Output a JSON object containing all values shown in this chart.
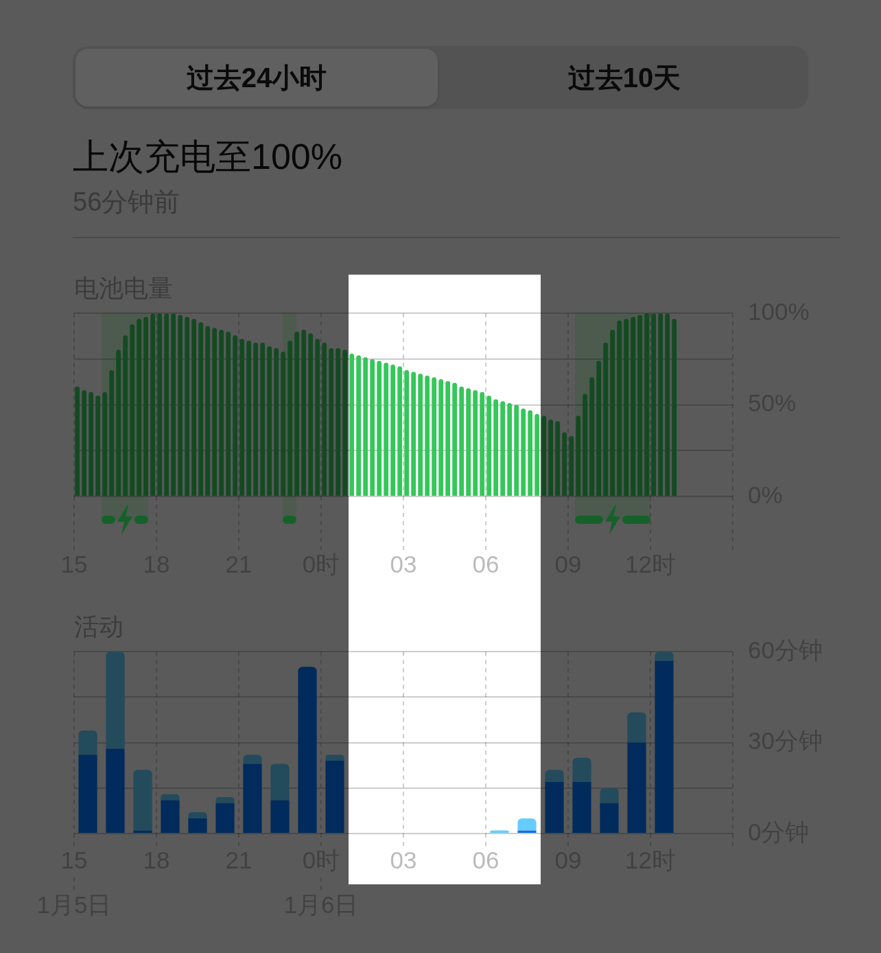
{
  "chart_data": [
    {
      "type": "other",
      "title": "上次充电至100%",
      "subtitle": "56分钟前",
      "annotations": [
        "过去24小时",
        "过去10天"
      ]
    },
    {
      "type": "bar",
      "title": "电池电量",
      "x": [
        "--01-05T15:07",
        "--01-05T15:22",
        "--01-05T15:37",
        "--01-05T15:52",
        "--01-05T16:07",
        "--01-05T16:22",
        "--01-05T16:37",
        "--01-05T16:52",
        "--01-05T17:07",
        "--01-05T17:22",
        "--01-05T17:37",
        "--01-05T17:52",
        "--01-05T18:07",
        "--01-05T18:22",
        "--01-05T18:37",
        "--01-05T18:52",
        "--01-05T19:07",
        "--01-05T19:22",
        "--01-05T19:37",
        "--01-05T19:52",
        "--01-05T20:07",
        "--01-05T20:22",
        "--01-05T20:37",
        "--01-05T20:52",
        "--01-05T21:07",
        "--01-05T21:22",
        "--01-05T21:37",
        "--01-05T21:52",
        "--01-05T22:07",
        "--01-05T22:22",
        "--01-05T22:37",
        "--01-05T22:52",
        "--01-05T23:07",
        "--01-05T23:22",
        "--01-05T23:37",
        "--01-05T23:52",
        "--01-06T00:07",
        "--01-06T00:22",
        "--01-06T00:37",
        "--01-06T00:52",
        "--01-06T01:07",
        "--01-06T01:22",
        "--01-06T01:37",
        "--01-06T01:52",
        "--01-06T02:07",
        "--01-06T02:22",
        "--01-06T02:37",
        "--01-06T02:52",
        "--01-06T03:07",
        "--01-06T03:22",
        "--01-06T03:37",
        "--01-06T03:52",
        "--01-06T04:07",
        "--01-06T04:22",
        "--01-06T04:37",
        "--01-06T04:52",
        "--01-06T05:07",
        "--01-06T05:22",
        "--01-06T05:37",
        "--01-06T05:52",
        "--01-06T06:07",
        "--01-06T06:22",
        "--01-06T06:37",
        "--01-06T06:52",
        "--01-06T07:07",
        "--01-06T07:22",
        "--01-06T07:37",
        "--01-06T07:52",
        "--01-06T08:07",
        "--01-06T08:22",
        "--01-06T08:37",
        "--01-06T08:52",
        "--01-06T09:07",
        "--01-06T09:22",
        "--01-06T09:37",
        "--01-06T09:52",
        "--01-06T10:07",
        "--01-06T10:22",
        "--01-06T10:37",
        "--01-06T10:52",
        "--01-06T11:07",
        "--01-06T11:22",
        "--01-06T11:37",
        "--01-06T11:52",
        "--01-06T12:07",
        "--01-06T12:22",
        "--01-06T12:37",
        "--01-06T12:52"
      ],
      "values": [
        60,
        58,
        57,
        55,
        57,
        69,
        80,
        88,
        94,
        97,
        98,
        100,
        100,
        100,
        100,
        99,
        98,
        97,
        95,
        93,
        92,
        91,
        90,
        88,
        86,
        85,
        84,
        84,
        82,
        81,
        79,
        85,
        90,
        91,
        89,
        86,
        84,
        81,
        81,
        80,
        78,
        77,
        76,
        75,
        74,
        73,
        72,
        71,
        69,
        68,
        67,
        66,
        65,
        64,
        63,
        62,
        60,
        59,
        58,
        57,
        55,
        53,
        52,
        51,
        50,
        48,
        47,
        45,
        44,
        42,
        41,
        35,
        33,
        44,
        56,
        65,
        74,
        84,
        91,
        96,
        97,
        98,
        99,
        100,
        100,
        100,
        100,
        97
      ],
      "colors": [
        "#134a22",
        "#134a22",
        "#134a22",
        "#134a22",
        "#134a22",
        "#134a22",
        "#134a22",
        "#134a22",
        "#134a22",
        "#134a22",
        "#134a22",
        "#134a22",
        "#134a22",
        "#134a22",
        "#134a22",
        "#134a22",
        "#134a22",
        "#134a22",
        "#134a22",
        "#134a22",
        "#134a22",
        "#134a22",
        "#134a22",
        "#134a22",
        "#134a22",
        "#134a22",
        "#134a22",
        "#134a22",
        "#134a22",
        "#134a22",
        "#134a22",
        "#134a22",
        "#134a22",
        "#134a22",
        "#134a22",
        "#134a22",
        "#134a22",
        "#134a22",
        "#134a22",
        "#134a22",
        "#34c759",
        "#34c759",
        "#34c759",
        "#34c759",
        "#34c759",
        "#34c759",
        "#34c759",
        "#34c759",
        "#34c759",
        "#34c759",
        "#34c759",
        "#34c759",
        "#34c759",
        "#34c759",
        "#34c759",
        "#34c759",
        "#34c759",
        "#34c759",
        "#34c759",
        "#34c759",
        "#34c759",
        "#34c759",
        "#34c759",
        "#34c759",
        "#34c759",
        "#34c759",
        "#34c759",
        "#34c759",
        "#134a22",
        "#134a22",
        "#134a22",
        "#134a22",
        "#134a22",
        "#134a22",
        "#134a22",
        "#134a22",
        "#134a22",
        "#134a22",
        "#134a22",
        "#134a22",
        "#134a22",
        "#134a22",
        "#134a22",
        "#134a22",
        "#134a22",
        "#134a22",
        "#134a22",
        "#134a22"
      ],
      "xlim": [
        "--01-05T15:00",
        "--01-06T15:00"
      ],
      "xticks": [
        {
          "value": "--01-05T15:00",
          "label": "15"
        },
        {
          "value": "--01-05T18:00",
          "label": "18"
        },
        {
          "value": "--01-05T21:00",
          "label": "21"
        },
        {
          "value": "--01-06T00:00",
          "label": "0时"
        },
        {
          "value": "--01-06T03:00",
          "label": "03"
        },
        {
          "value": "--01-06T06:00",
          "label": "06"
        },
        {
          "value": "--01-06T09:00",
          "label": "09"
        },
        {
          "value": "--01-06T12:00",
          "label": "12时"
        },
        {
          "value": "--01-06T15:00",
          "label": null
        }
      ],
      "ylim": [
        0,
        100
      ],
      "yticks": [
        {
          "value": 0,
          "label": "0%"
        },
        {
          "value": 25,
          "label": null
        },
        {
          "value": 50,
          "label": "50%"
        },
        {
          "value": 75,
          "label": null
        },
        {
          "value": 100,
          "label": "100%"
        }
      ],
      "grid": true,
      "bands": [
        {
          "axis": "x",
          "from": "--01-06T01:00",
          "to": "--01-06T08:00",
          "color": "#ffffff"
        },
        {
          "axis": "x",
          "from": "--01-05T16:00",
          "to": "--01-05T17:42",
          "color": "#4d5b4f"
        },
        {
          "axis": "x",
          "from": "--01-05T22:36",
          "to": "--01-05T23:06",
          "color": "#4d5b4f"
        },
        {
          "axis": "x",
          "from": "--01-06T09:15",
          "to": "--01-06T12:00",
          "color": "#4d5b4f"
        }
      ]
    },
    {
      "type": "bar",
      "title": "活动",
      "stacked": true,
      "x": [
        "--01-05T15:30",
        "--01-05T16:30",
        "--01-05T17:30",
        "--01-05T18:30",
        "--01-05T19:30",
        "--01-05T20:30",
        "--01-05T21:30",
        "--01-05T22:30",
        "--01-05T23:30",
        "--01-06T00:30",
        "--01-06T01:30",
        "--01-06T02:30",
        "--01-06T03:30",
        "--01-06T04:30",
        "--01-06T05:30",
        "--01-06T06:30",
        "--01-06T07:30",
        "--01-06T08:30",
        "--01-06T09:30",
        "--01-06T10:30",
        "--01-06T11:30",
        "--01-06T12:30"
      ],
      "series": [
        {
          "values": [
            26,
            28,
            1,
            11,
            5,
            10,
            23,
            11,
            55,
            24,
            null,
            null,
            null,
            null,
            null,
            null,
            1,
            17,
            17,
            10,
            30,
            57
          ],
          "colors": [
            "#002b5c",
            "#002b5c",
            "#002b5c",
            "#002b5c",
            "#002b5c",
            "#002b5c",
            "#002b5c",
            "#002b5c",
            "#002b5c",
            "#002b5c",
            "#002b5c",
            "#002b5c",
            "#002b5c",
            "#002b5c",
            "#002b5c",
            "#002b5c",
            "#0a6fe6",
            "#002b5c",
            "#002b5c",
            "#002b5c",
            "#002b5c",
            "#002b5c"
          ]
        },
        {
          "values": [
            8,
            32,
            20,
            2,
            2,
            2,
            3,
            12,
            null,
            2,
            null,
            null,
            null,
            null,
            null,
            1,
            4,
            4,
            8,
            5,
            10,
            3
          ],
          "colors": [
            "#234b5c",
            "#234b5c",
            "#234b5c",
            "#234b5c",
            "#234b5c",
            "#234b5c",
            "#234b5c",
            "#234b5c",
            "#234b5c",
            "#234b5c",
            "#234b5c",
            "#234b5c",
            "#234b5c",
            "#234b5c",
            "#234b5c",
            "#66ccff",
            "#66ccff",
            "#234b5c",
            "#234b5c",
            "#234b5c",
            "#234b5c",
            "#234b5c"
          ]
        }
      ],
      "xlim": [
        "--01-05T15:00",
        "--01-06T15:00"
      ],
      "xticks": [
        {
          "value": "--01-05T15:00",
          "label": "15"
        },
        {
          "value": "--01-05T18:00",
          "label": "18"
        },
        {
          "value": "--01-05T21:00",
          "label": "21"
        },
        {
          "value": "--01-06T00:00",
          "label": "0时"
        },
        {
          "value": "--01-06T03:00",
          "label": "03"
        },
        {
          "value": "--01-06T06:00",
          "label": "06"
        },
        {
          "value": "--01-06T09:00",
          "label": "09"
        },
        {
          "value": "--01-06T12:00",
          "label": "12时"
        },
        {
          "value": "--01-06T15:00",
          "label": null
        }
      ],
      "x2lim": [
        "--01-05T15:00",
        "--01-06T15:00"
      ],
      "x2ticks": [
        {
          "value": "--01-05T15:00",
          "label": "1月5日"
        },
        {
          "value": "--01-06T00:00",
          "label": "1月6日"
        }
      ],
      "ylim": [
        0,
        60
      ],
      "yticks": [
        {
          "value": 0,
          "label": "0分钟"
        },
        {
          "value": 15,
          "label": null
        },
        {
          "value": 30,
          "label": "30分钟"
        },
        {
          "value": 45,
          "label": null
        },
        {
          "value": 60,
          "label": "60分钟"
        }
      ],
      "grid": true,
      "bands": [
        {
          "axis": "x",
          "from": "--01-06T01:00",
          "to": "--01-06T08:00",
          "color": "#ffffff"
        }
      ]
    }
  ]
}
